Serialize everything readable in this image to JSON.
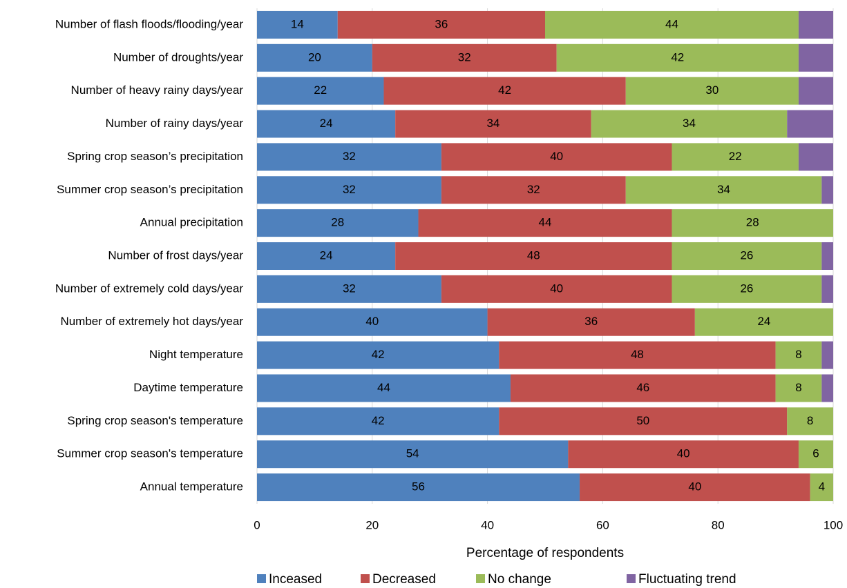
{
  "chart_data": {
    "type": "stacked-bar-horizontal",
    "categories": [
      "Number of flash floods/flooding/year",
      "Number of droughts/year",
      "Number of heavy rainy days/year",
      "Number of rainy days/year",
      "Spring crop season’s precipitation",
      "Summer crop season’s precipitation",
      "Annual precipitation",
      "Number of frost days/year",
      "Number of extremely cold days/year",
      "Number of extremely hot days/year",
      "Night temperature",
      "Daytime temperature",
      "Spring crop season's temperature",
      "Summer crop season's temperature",
      "Annual temperature"
    ],
    "series": [
      {
        "name": "Inceased",
        "color": "#4f81bd",
        "data_labels": true,
        "values": [
          14,
          20,
          22,
          24,
          32,
          32,
          28,
          24,
          32,
          40,
          42,
          44,
          42,
          54,
          56
        ]
      },
      {
        "name": "Decreased",
        "color": "#c0504d",
        "data_labels": true,
        "values": [
          36,
          32,
          42,
          34,
          40,
          32,
          44,
          48,
          40,
          36,
          48,
          46,
          50,
          40,
          40
        ]
      },
      {
        "name": "No change",
        "color": "#9bbb59",
        "data_labels": true,
        "values": [
          44,
          42,
          30,
          34,
          22,
          34,
          28,
          26,
          26,
          24,
          8,
          8,
          8,
          6,
          4
        ]
      },
      {
        "name": "Fluctuating trend",
        "color": "#8064a2",
        "data_labels": false,
        "values": [
          6,
          6,
          6,
          8,
          6,
          2,
          0,
          2,
          2,
          0,
          2,
          2,
          0,
          0,
          0
        ]
      }
    ],
    "xlabel": "Percentage of respondents",
    "xlim": [
      0,
      100
    ],
    "xticks": [
      0,
      20,
      40,
      60,
      80,
      100
    ],
    "grid": true,
    "legend": "bottom"
  }
}
